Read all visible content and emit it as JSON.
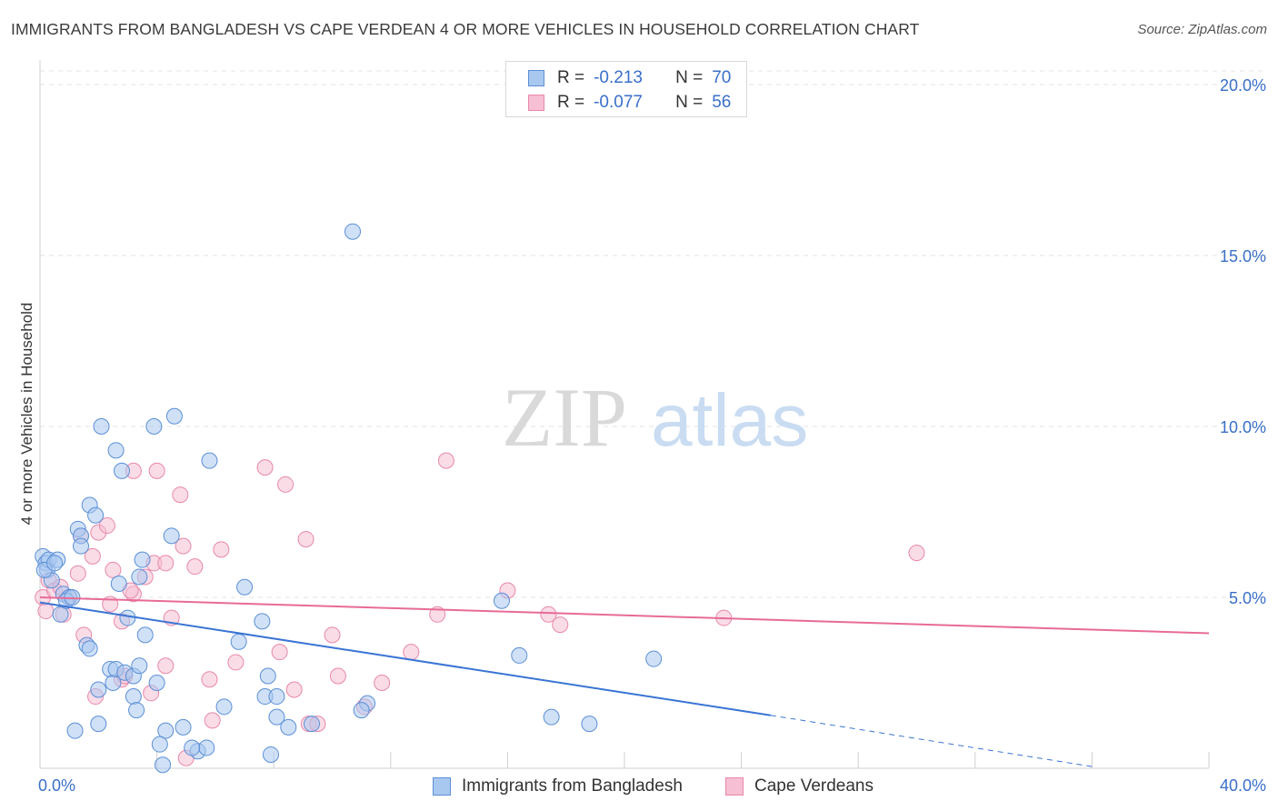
{
  "header": {
    "title": "IMMIGRANTS FROM BANGLADESH VS CAPE VERDEAN 4 OR MORE VEHICLES IN HOUSEHOLD CORRELATION CHART",
    "source": "Source: ZipAtlas.com"
  },
  "watermark": {
    "zip": "ZIP",
    "atlas": "atlas"
  },
  "legend": {
    "rows": [
      {
        "r_label": "R =",
        "r_value": "-0.213",
        "n_label": "N =",
        "n_value": "70"
      },
      {
        "r_label": "R =",
        "r_value": "-0.077",
        "n_label": "N =",
        "n_value": "56"
      }
    ]
  },
  "bottom_legend": {
    "items": [
      {
        "label": "Immigrants from Bangladesh"
      },
      {
        "label": "Cape Verdeans"
      }
    ]
  },
  "colors": {
    "blue_fill": "#a9c8f0",
    "blue_stroke": "#5b8fd6",
    "blue_line": "#3a74d4",
    "pink_fill": "#f6bfd3",
    "pink_stroke": "#e888aa",
    "pink_line": "#e76b98",
    "axis_text": "#3a6fc9",
    "grid": "#e3e3e3"
  },
  "chart_data": {
    "type": "scatter",
    "title": "IMMIGRANTS FROM BANGLADESH VS CAPE VERDEAN 4 OR MORE VEHICLES IN HOUSEHOLD CORRELATION CHART",
    "xlabel": "",
    "ylabel": "4 or more Vehicles in Household",
    "xlim": [
      0,
      40
    ],
    "ylim": [
      0,
      20.4
    ],
    "x_tick_labels": [
      "0.0%",
      "40.0%"
    ],
    "y_ticks": [
      5,
      10,
      15,
      20
    ],
    "y_tick_labels": [
      "5.0%",
      "10.0%",
      "15.0%",
      "20.0%"
    ],
    "grid": "horizontal dashed",
    "legend_position": "top-center",
    "series": [
      {
        "name": "Immigrants from Bangladesh",
        "r": -0.213,
        "n": 70,
        "points": [
          [
            0.1,
            6.2
          ],
          [
            0.2,
            6.0
          ],
          [
            0.25,
            5.8
          ],
          [
            0.3,
            6.1
          ],
          [
            0.4,
            5.5
          ],
          [
            0.6,
            6.1
          ],
          [
            0.8,
            5.1
          ],
          [
            1.0,
            5.0
          ],
          [
            0.7,
            4.5
          ],
          [
            0.9,
            4.9
          ],
          [
            1.1,
            5.0
          ],
          [
            1.3,
            7.0
          ],
          [
            1.4,
            6.8
          ],
          [
            1.4,
            6.5
          ],
          [
            1.7,
            7.7
          ],
          [
            1.9,
            7.4
          ],
          [
            2.1,
            10.0
          ],
          [
            2.6,
            9.3
          ],
          [
            2.8,
            8.7
          ],
          [
            3.9,
            10.0
          ],
          [
            4.6,
            10.3
          ],
          [
            5.8,
            9.0
          ],
          [
            4.5,
            6.8
          ],
          [
            3.5,
            6.1
          ],
          [
            3.4,
            5.6
          ],
          [
            2.7,
            5.4
          ],
          [
            3.0,
            4.4
          ],
          [
            1.6,
            3.6
          ],
          [
            1.7,
            3.5
          ],
          [
            2.4,
            2.9
          ],
          [
            2.5,
            2.5
          ],
          [
            2.6,
            2.9
          ],
          [
            2.0,
            2.3
          ],
          [
            2.9,
            2.8
          ],
          [
            3.2,
            2.7
          ],
          [
            3.4,
            3.0
          ],
          [
            3.6,
            3.9
          ],
          [
            4.0,
            2.5
          ],
          [
            3.2,
            2.1
          ],
          [
            3.3,
            1.7
          ],
          [
            2.0,
            1.3
          ],
          [
            1.2,
            1.1
          ],
          [
            4.3,
            1.1
          ],
          [
            4.9,
            1.2
          ],
          [
            4.1,
            0.7
          ],
          [
            5.4,
            0.5
          ],
          [
            5.7,
            0.6
          ],
          [
            5.2,
            0.6
          ],
          [
            4.2,
            0.1
          ],
          [
            6.3,
            1.8
          ],
          [
            6.8,
            3.7
          ],
          [
            7.0,
            5.3
          ],
          [
            7.6,
            4.3
          ],
          [
            7.7,
            2.1
          ],
          [
            7.8,
            2.7
          ],
          [
            8.1,
            1.5
          ],
          [
            8.5,
            1.2
          ],
          [
            9.3,
            1.3
          ],
          [
            8.1,
            2.1
          ],
          [
            7.9,
            0.4
          ],
          [
            10.7,
            15.7
          ],
          [
            11.2,
            1.9
          ],
          [
            11.0,
            1.7
          ],
          [
            15.8,
            4.9
          ],
          [
            16.4,
            3.3
          ],
          [
            17.5,
            1.5
          ],
          [
            18.8,
            1.3
          ],
          [
            21.0,
            3.2
          ],
          [
            0.15,
            5.8
          ],
          [
            0.5,
            6.0
          ]
        ]
      },
      {
        "name": "Cape Verdeans",
        "r": -0.077,
        "n": 56,
        "points": [
          [
            0.1,
            5.0
          ],
          [
            0.3,
            5.5
          ],
          [
            0.5,
            5.2
          ],
          [
            0.7,
            5.3
          ],
          [
            1.0,
            5.0
          ],
          [
            0.8,
            4.5
          ],
          [
            1.3,
            5.7
          ],
          [
            1.5,
            3.9
          ],
          [
            1.4,
            6.8
          ],
          [
            1.8,
            6.2
          ],
          [
            2.0,
            6.9
          ],
          [
            2.3,
            7.1
          ],
          [
            2.5,
            5.8
          ],
          [
            2.4,
            4.8
          ],
          [
            2.8,
            4.3
          ],
          [
            3.2,
            5.1
          ],
          [
            3.1,
            5.2
          ],
          [
            3.6,
            5.6
          ],
          [
            3.9,
            6.0
          ],
          [
            4.0,
            8.7
          ],
          [
            3.2,
            8.7
          ],
          [
            4.3,
            6.0
          ],
          [
            4.5,
            4.4
          ],
          [
            4.8,
            8.0
          ],
          [
            4.9,
            6.5
          ],
          [
            5.3,
            5.9
          ],
          [
            5.8,
            2.6
          ],
          [
            5.9,
            1.4
          ],
          [
            6.2,
            6.4
          ],
          [
            6.7,
            3.1
          ],
          [
            4.3,
            3.0
          ],
          [
            3.8,
            2.2
          ],
          [
            2.8,
            2.6
          ],
          [
            1.9,
            2.1
          ],
          [
            5.0,
            0.3
          ],
          [
            7.7,
            8.8
          ],
          [
            8.2,
            3.4
          ],
          [
            8.4,
            8.3
          ],
          [
            8.7,
            2.3
          ],
          [
            9.1,
            6.7
          ],
          [
            9.2,
            1.3
          ],
          [
            9.5,
            1.3
          ],
          [
            10.0,
            3.9
          ],
          [
            10.2,
            2.7
          ],
          [
            11.1,
            1.8
          ],
          [
            11.7,
            2.5
          ],
          [
            12.7,
            3.4
          ],
          [
            13.6,
            4.5
          ],
          [
            13.9,
            9.0
          ],
          [
            16.0,
            5.2
          ],
          [
            17.4,
            4.5
          ],
          [
            17.8,
            4.2
          ],
          [
            23.4,
            4.4
          ],
          [
            30.0,
            6.3
          ],
          [
            0.2,
            4.6
          ],
          [
            2.9,
            2.7
          ]
        ]
      }
    ],
    "trend_lines": [
      {
        "series": "Immigrants from Bangladesh",
        "x_start": 0,
        "y_start": 4.85,
        "x_end": 25,
        "y_end": 1.55,
        "dashed_to_x": 36,
        "dashed_to_y": 0.05
      },
      {
        "series": "Cape Verdeans",
        "x_start": 0,
        "y_start": 5.0,
        "x_end": 40,
        "y_end": 3.95
      }
    ]
  }
}
